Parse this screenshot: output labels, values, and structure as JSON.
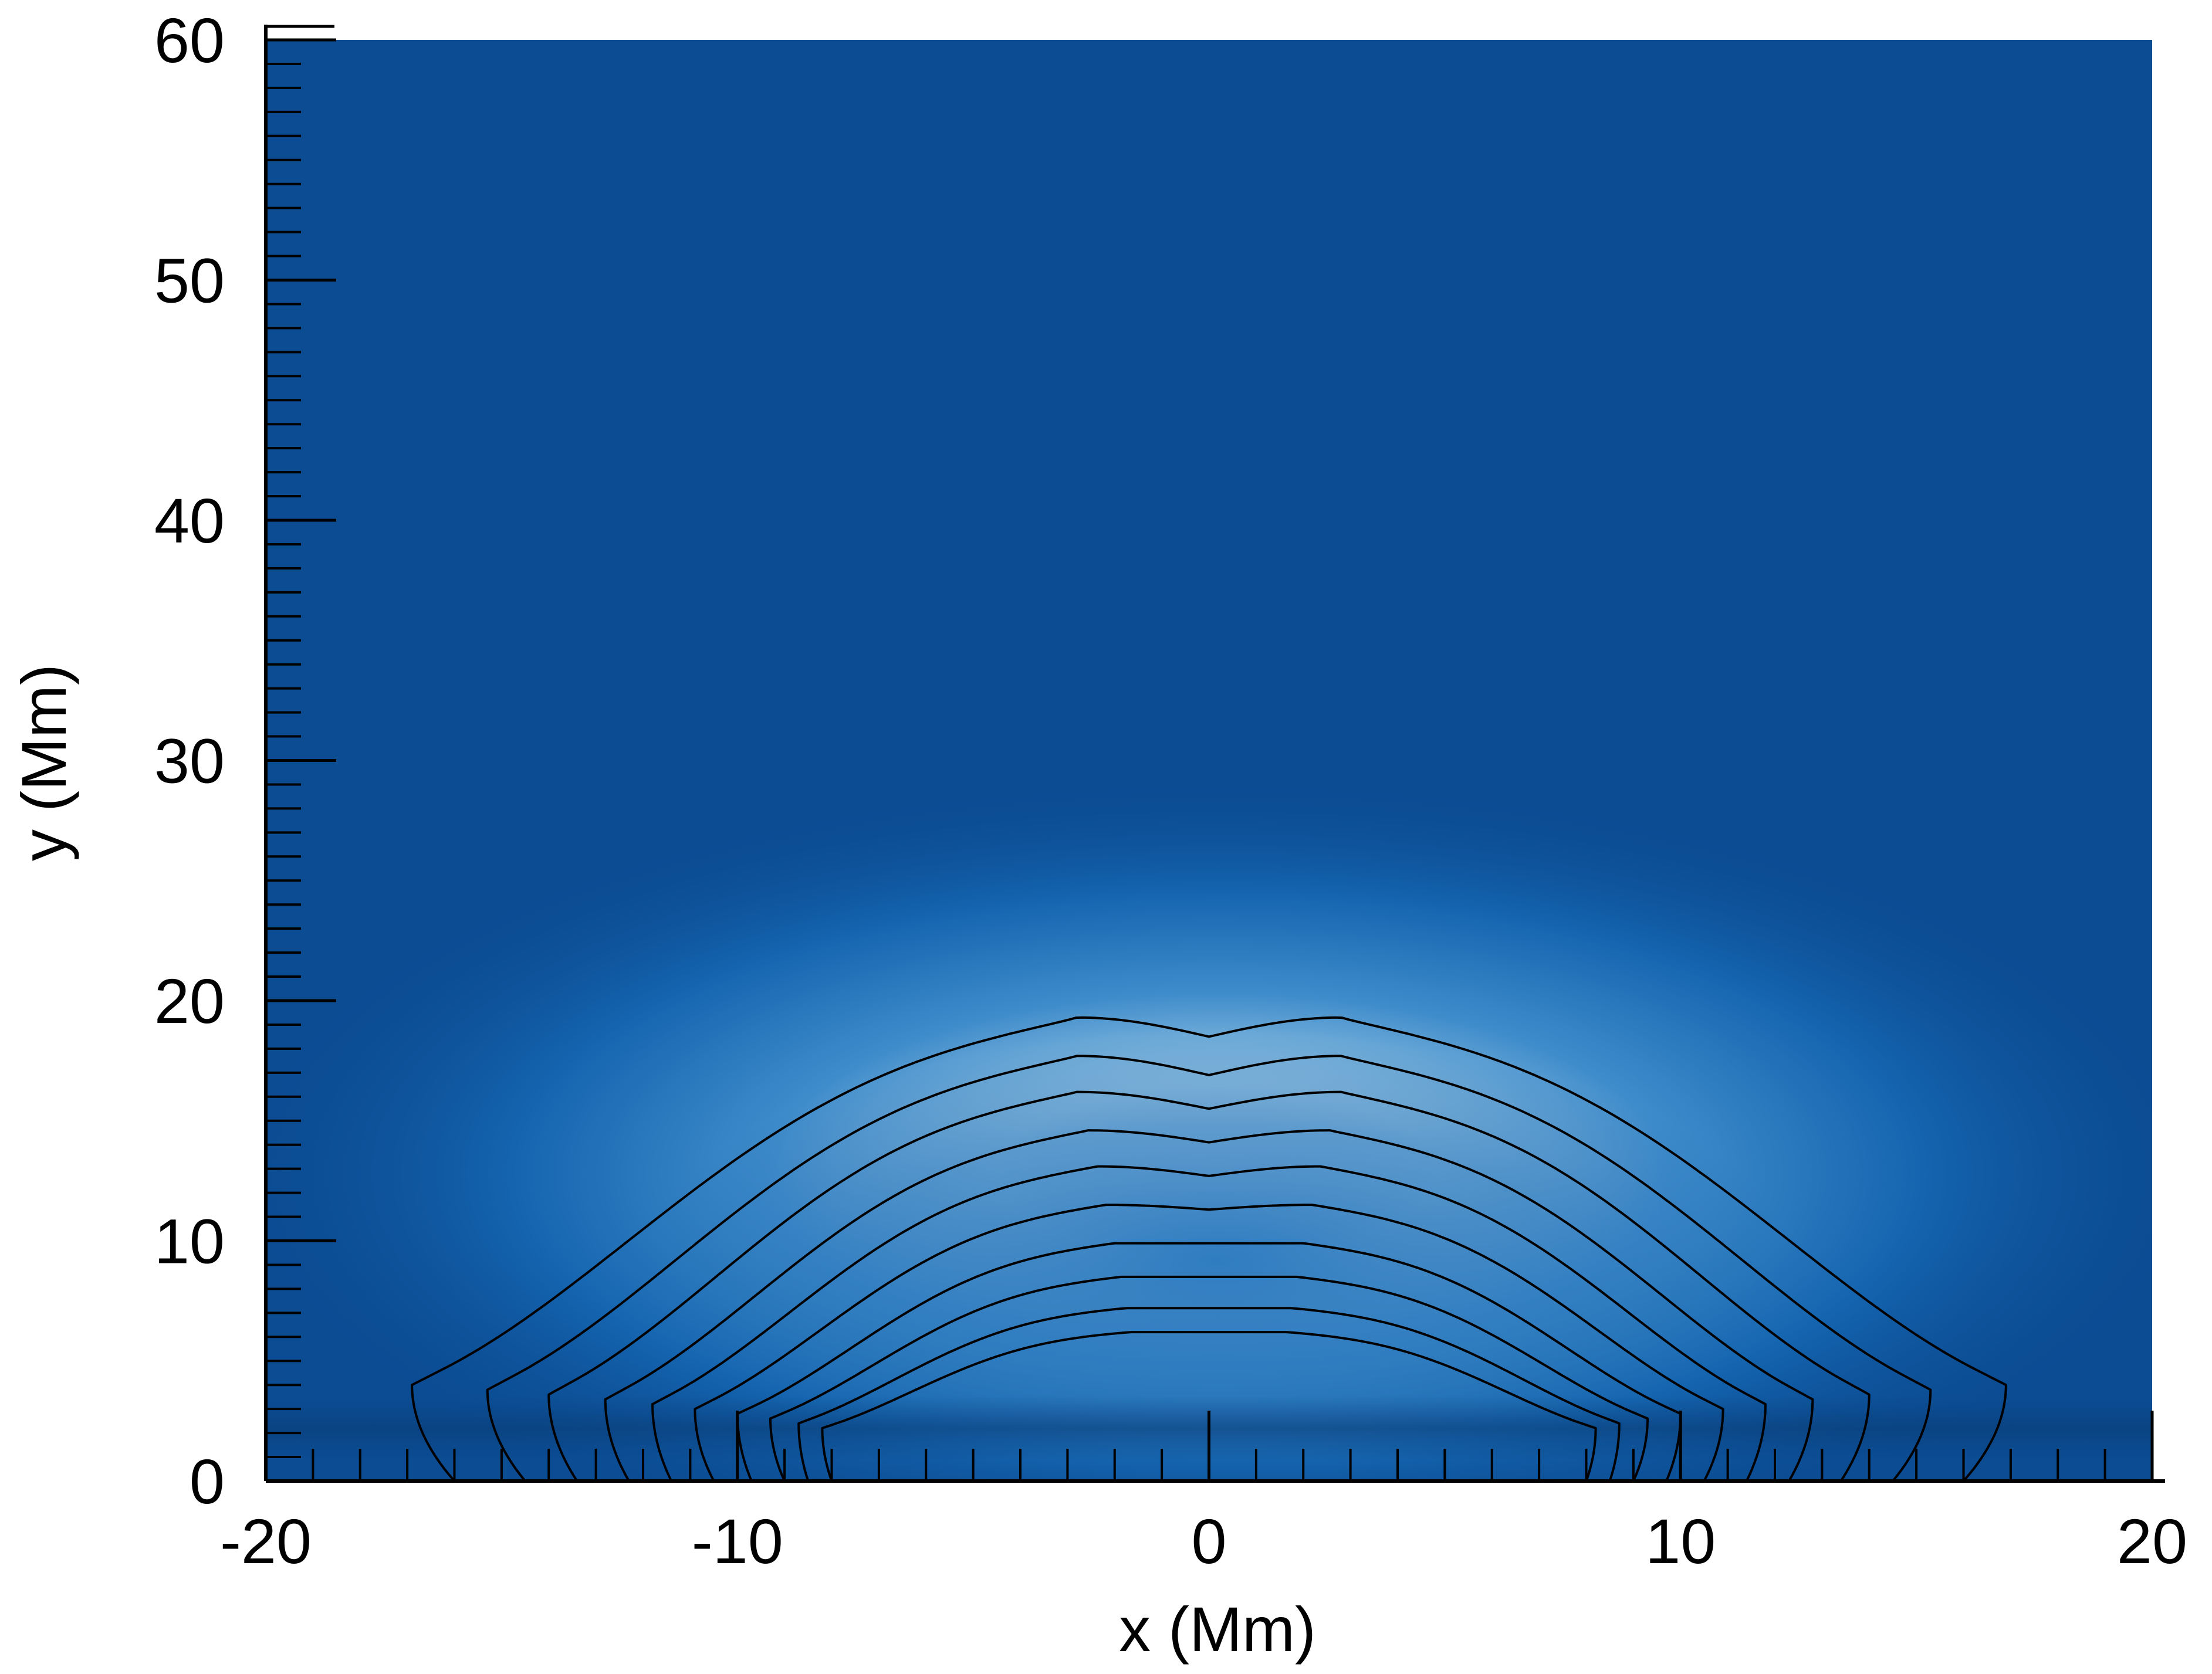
{
  "chart_data": {
    "type": "heatmap",
    "title": "",
    "xlabel": "x (Mm)",
    "ylabel": "y (Mm)",
    "xlim": [
      -20,
      20
    ],
    "ylim": [
      0,
      60
    ],
    "x_ticks": {
      "major": [
        -20,
        -10,
        0,
        10,
        20
      ],
      "major_labels": [
        "-20",
        "-10",
        "0",
        "10",
        "20"
      ],
      "minor_step": 1
    },
    "y_ticks": {
      "major": [
        0,
        10,
        20,
        30,
        40,
        50,
        60
      ],
      "major_labels": [
        "0",
        "10",
        "20",
        "30",
        "40",
        "50",
        "60"
      ],
      "minor_step": 1
    },
    "colormap": {
      "background": "#0b4c93",
      "mid": "#0d5aa8",
      "high": "#a8d0e8",
      "band_near_base": "#0a3f7a"
    },
    "contour_color": "#000000",
    "field_lines": [
      {
        "top_center": 18.5,
        "peak_height": 19.3,
        "shoulder_height": 4.0,
        "shoulder_x": 16.9,
        "foot_x": 16.0
      },
      {
        "top_center": 16.9,
        "peak_height": 17.7,
        "shoulder_height": 3.8,
        "shoulder_x": 15.3,
        "foot_x": 14.5
      },
      {
        "top_center": 15.5,
        "peak_height": 16.2,
        "shoulder_height": 3.6,
        "shoulder_x": 14.0,
        "foot_x": 13.4
      },
      {
        "top_center": 14.1,
        "peak_height": 14.6,
        "shoulder_height": 3.4,
        "shoulder_x": 12.8,
        "foot_x": 12.3
      },
      {
        "top_center": 12.7,
        "peak_height": 13.1,
        "shoulder_height": 3.2,
        "shoulder_x": 11.8,
        "foot_x": 11.4
      },
      {
        "top_center": 11.3,
        "peak_height": 11.5,
        "shoulder_height": 3.0,
        "shoulder_x": 10.9,
        "foot_x": 10.5
      },
      {
        "top_center": 9.9,
        "peak_height": 9.9,
        "shoulder_height": 2.8,
        "shoulder_x": 10.0,
        "foot_x": 9.7
      },
      {
        "top_center": 8.5,
        "peak_height": 8.5,
        "shoulder_height": 2.6,
        "shoulder_x": 9.3,
        "foot_x": 9.0
      },
      {
        "top_center": 7.2,
        "peak_height": 7.2,
        "shoulder_height": 2.4,
        "shoulder_x": 8.7,
        "foot_x": 8.5
      },
      {
        "top_center": 6.2,
        "peak_height": 6.2,
        "shoulder_height": 2.2,
        "shoulder_x": 8.2,
        "foot_x": 8.0
      }
    ]
  }
}
